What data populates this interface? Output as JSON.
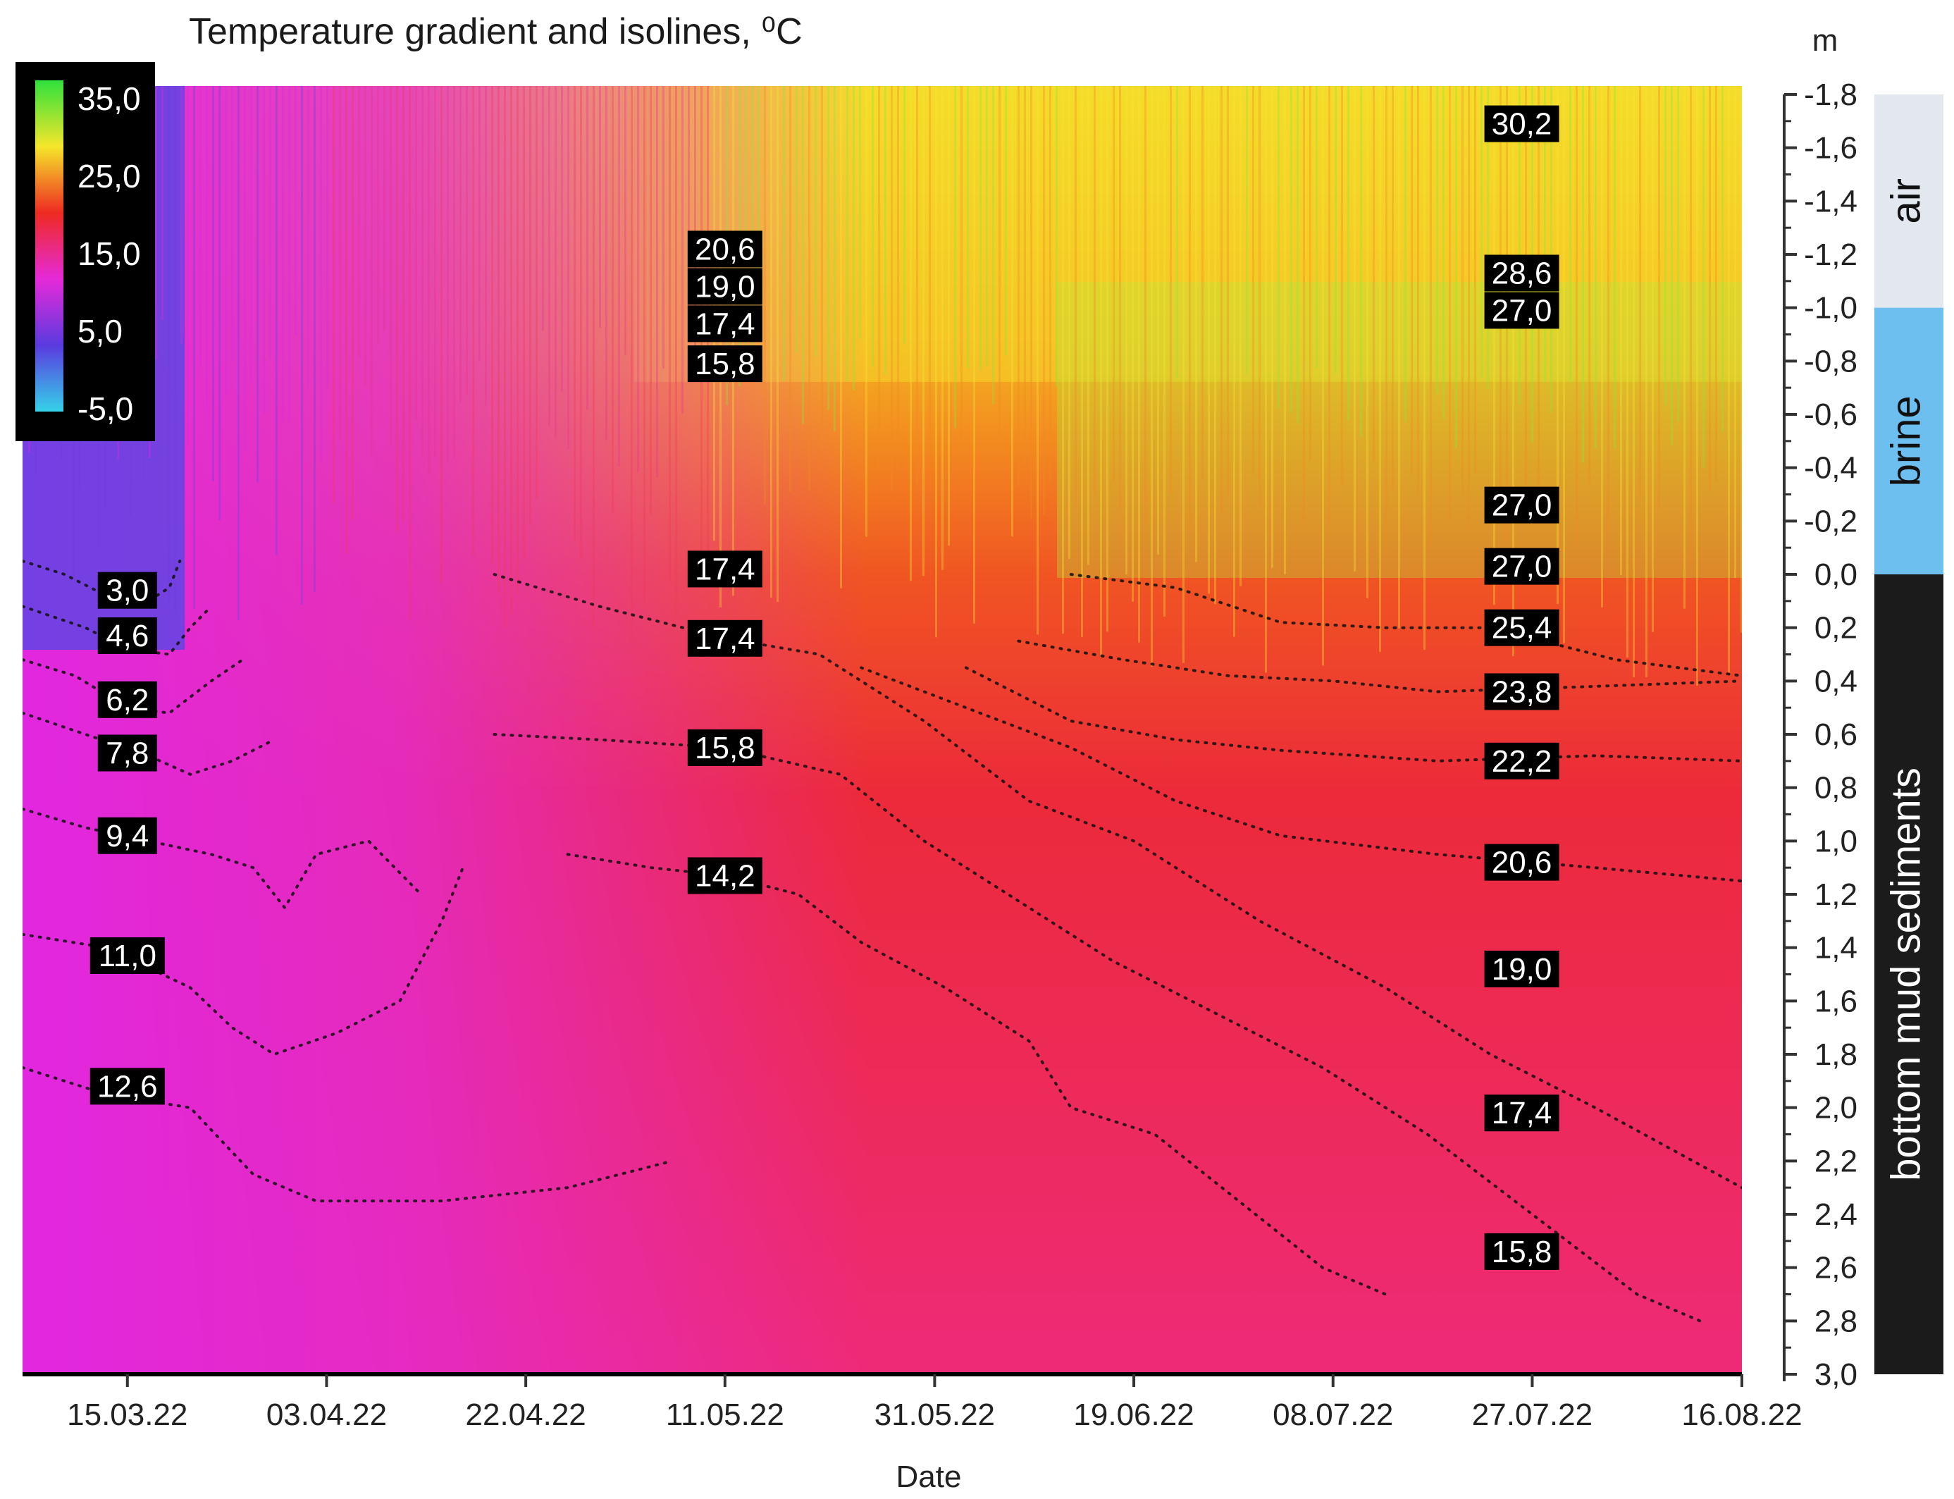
{
  "chart_data": {
    "type": "heatmap",
    "title": "Temperature gradient and isolines, ⁰C",
    "xlabel": "Date",
    "ylabel": "m",
    "x_tick_labels": [
      "15.03.22",
      "03.04.22",
      "22.04.22",
      "11.05.22",
      "31.05.22",
      "19.06.22",
      "08.07.22",
      "27.07.22",
      "16.08.22"
    ],
    "x_tick_days": [
      10,
      29,
      48,
      67,
      87,
      106,
      125,
      144,
      164
    ],
    "x_range_days": [
      0,
      164
    ],
    "y_tick_labels": [
      "-1,8",
      "-1,6",
      "-1,4",
      "-1,2",
      "-1,0",
      "-0,8",
      "-0,6",
      "-0,4",
      "-0,2",
      "0,0",
      "0,2",
      "0,4",
      "0,6",
      "0,8",
      "1,0",
      "1,2",
      "1,4",
      "1,6",
      "1,8",
      "2,0",
      "2,2",
      "2,4",
      "2,6",
      "2,8",
      "3,0"
    ],
    "y_tick_values": [
      -1.8,
      -1.6,
      -1.4,
      -1.2,
      -1.0,
      -0.8,
      -0.6,
      -0.4,
      -0.2,
      0.0,
      0.2,
      0.4,
      0.6,
      0.8,
      1.0,
      1.2,
      1.4,
      1.6,
      1.8,
      2.0,
      2.2,
      2.4,
      2.6,
      2.8,
      3.0
    ],
    "ylim": [
      -1.8,
      3.0
    ],
    "y_inverted": true,
    "colorbar": {
      "labels": [
        "35,0",
        "25,0",
        "15,0",
        "5,0",
        "-5,0"
      ],
      "values": [
        35,
        25,
        15,
        5,
        -5
      ],
      "colors": [
        "#2fe13c",
        "#f5e62a",
        "#ee2a22",
        "#e62ad8",
        "#5a3ae0",
        "#35d2e8"
      ],
      "placement": "top-left"
    },
    "zones": [
      {
        "label": "air",
        "from": -1.8,
        "to": -1.0,
        "color": "#e3e8ee",
        "text_color": "#111111"
      },
      {
        "label": "brine",
        "from": -1.0,
        "to": 0.0,
        "color": "#6dbff0",
        "text_color": "#111111"
      },
      {
        "label": "bottom mud sediments",
        "from": 0.0,
        "to": 3.0,
        "color": "#1b1b1b",
        "text_color": "#ffffff"
      }
    ],
    "isoline_labels": [
      {
        "text": "3,0",
        "day": 10,
        "depth": 0.06
      },
      {
        "text": "4,6",
        "day": 10,
        "depth": 0.23
      },
      {
        "text": "6,2",
        "day": 10,
        "depth": 0.47
      },
      {
        "text": "7,8",
        "day": 10,
        "depth": 0.67
      },
      {
        "text": "9,4",
        "day": 10,
        "depth": 0.98
      },
      {
        "text": "11,0",
        "day": 10,
        "depth": 1.43
      },
      {
        "text": "12,6",
        "day": 10,
        "depth": 1.92
      },
      {
        "text": "20,6",
        "day": 67,
        "depth": -1.22
      },
      {
        "text": "19,0",
        "day": 67,
        "depth": -1.08
      },
      {
        "text": "17,4",
        "day": 67,
        "depth": -0.94
      },
      {
        "text": "15,8",
        "day": 67,
        "depth": -0.79
      },
      {
        "text": "17,4",
        "day": 67,
        "depth": -0.02
      },
      {
        "text": "17,4",
        "day": 67,
        "depth": 0.24
      },
      {
        "text": "15,8",
        "day": 67,
        "depth": 0.65
      },
      {
        "text": "14,2",
        "day": 67,
        "depth": 1.13
      },
      {
        "text": "30,2",
        "day": 143,
        "depth": -1.69
      },
      {
        "text": "28,6",
        "day": 143,
        "depth": -1.13
      },
      {
        "text": "27,0",
        "day": 143,
        "depth": -0.99
      },
      {
        "text": "27,0",
        "day": 143,
        "depth": -0.26
      },
      {
        "text": "27,0",
        "day": 143,
        "depth": -0.03
      },
      {
        "text": "25,4",
        "day": 143,
        "depth": 0.2
      },
      {
        "text": "23,8",
        "day": 143,
        "depth": 0.44
      },
      {
        "text": "22,2",
        "day": 143,
        "depth": 0.7
      },
      {
        "text": "20,6",
        "day": 143,
        "depth": 1.08
      },
      {
        "text": "19,0",
        "day": 143,
        "depth": 1.48
      },
      {
        "text": "17,4",
        "day": 143,
        "depth": 2.02
      },
      {
        "text": "15,8",
        "day": 143,
        "depth": 2.54
      }
    ],
    "isolines": [
      {
        "value": 3.0,
        "points": [
          [
            0,
            -0.05
          ],
          [
            4,
            0.0
          ],
          [
            8,
            0.08
          ],
          [
            12,
            0.1
          ],
          [
            14,
            0.05
          ],
          [
            15,
            -0.05
          ]
        ]
      },
      {
        "value": 4.6,
        "points": [
          [
            0,
            0.12
          ],
          [
            6,
            0.2
          ],
          [
            10,
            0.28
          ],
          [
            14,
            0.3
          ],
          [
            16,
            0.2
          ],
          [
            18,
            0.12
          ]
        ]
      },
      {
        "value": 6.2,
        "points": [
          [
            0,
            0.32
          ],
          [
            5,
            0.38
          ],
          [
            10,
            0.5
          ],
          [
            14,
            0.52
          ],
          [
            18,
            0.4
          ],
          [
            21,
            0.32
          ]
        ]
      },
      {
        "value": 7.8,
        "points": [
          [
            0,
            0.52
          ],
          [
            6,
            0.6
          ],
          [
            12,
            0.68
          ],
          [
            16,
            0.75
          ],
          [
            20,
            0.7
          ],
          [
            24,
            0.62
          ]
        ]
      },
      {
        "value": 9.4,
        "points": [
          [
            0,
            0.88
          ],
          [
            6,
            0.95
          ],
          [
            12,
            1.0
          ],
          [
            18,
            1.05
          ],
          [
            22,
            1.1
          ],
          [
            25,
            1.25
          ],
          [
            28,
            1.05
          ],
          [
            33,
            1.0
          ],
          [
            38,
            1.2
          ]
        ]
      },
      {
        "value": 11.0,
        "points": [
          [
            0,
            1.35
          ],
          [
            8,
            1.4
          ],
          [
            16,
            1.55
          ],
          [
            20,
            1.7
          ],
          [
            24,
            1.8
          ],
          [
            30,
            1.72
          ],
          [
            36,
            1.6
          ],
          [
            40,
            1.3
          ],
          [
            42,
            1.1
          ]
        ]
      },
      {
        "value": 12.6,
        "points": [
          [
            0,
            1.85
          ],
          [
            8,
            1.95
          ],
          [
            16,
            2.0
          ],
          [
            22,
            2.25
          ],
          [
            28,
            2.35
          ],
          [
            40,
            2.35
          ],
          [
            52,
            2.3
          ],
          [
            62,
            2.2
          ]
        ]
      },
      {
        "value": 14.2,
        "points": [
          [
            52,
            1.05
          ],
          [
            60,
            1.1
          ],
          [
            67,
            1.13
          ],
          [
            74,
            1.2
          ],
          [
            80,
            1.38
          ],
          [
            88,
            1.55
          ],
          [
            96,
            1.75
          ],
          [
            100,
            2.0
          ],
          [
            108,
            2.1
          ],
          [
            116,
            2.35
          ],
          [
            124,
            2.6
          ],
          [
            130,
            2.7
          ]
        ]
      },
      {
        "value": 15.8,
        "points": [
          [
            45,
            0.6
          ],
          [
            55,
            0.62
          ],
          [
            67,
            0.65
          ],
          [
            78,
            0.75
          ],
          [
            86,
            1.0
          ],
          [
            94,
            1.2
          ],
          [
            104,
            1.45
          ],
          [
            114,
            1.65
          ],
          [
            124,
            1.85
          ],
          [
            134,
            2.1
          ],
          [
            144,
            2.4
          ],
          [
            154,
            2.7
          ],
          [
            160,
            2.8
          ]
        ]
      },
      {
        "value": 17.4,
        "points": [
          [
            45,
            0.0
          ],
          [
            55,
            0.12
          ],
          [
            67,
            0.24
          ],
          [
            76,
            0.3
          ],
          [
            86,
            0.55
          ],
          [
            96,
            0.85
          ],
          [
            106,
            1.0
          ],
          [
            118,
            1.3
          ],
          [
            130,
            1.55
          ],
          [
            140,
            1.8
          ],
          [
            150,
            2.0
          ],
          [
            164,
            2.3
          ]
        ]
      },
      {
        "value": 20.6,
        "points": [
          [
            80,
            0.35
          ],
          [
            90,
            0.5
          ],
          [
            100,
            0.65
          ],
          [
            110,
            0.85
          ],
          [
            120,
            0.98
          ],
          [
            135,
            1.05
          ],
          [
            150,
            1.1
          ],
          [
            164,
            1.15
          ]
        ]
      },
      {
        "value": 22.2,
        "points": [
          [
            90,
            0.35
          ],
          [
            100,
            0.55
          ],
          [
            110,
            0.62
          ],
          [
            120,
            0.66
          ],
          [
            135,
            0.7
          ],
          [
            150,
            0.68
          ],
          [
            164,
            0.7
          ]
        ]
      },
      {
        "value": 23.8,
        "points": [
          [
            95,
            0.25
          ],
          [
            105,
            0.32
          ],
          [
            115,
            0.38
          ],
          [
            125,
            0.4
          ],
          [
            135,
            0.44
          ],
          [
            150,
            0.42
          ],
          [
            164,
            0.4
          ]
        ]
      },
      {
        "value": 25.4,
        "points": [
          [
            100,
            0.0
          ],
          [
            110,
            0.05
          ],
          [
            120,
            0.18
          ],
          [
            130,
            0.2
          ],
          [
            140,
            0.2
          ],
          [
            152,
            0.32
          ],
          [
            164,
            0.38
          ]
        ]
      }
    ]
  }
}
